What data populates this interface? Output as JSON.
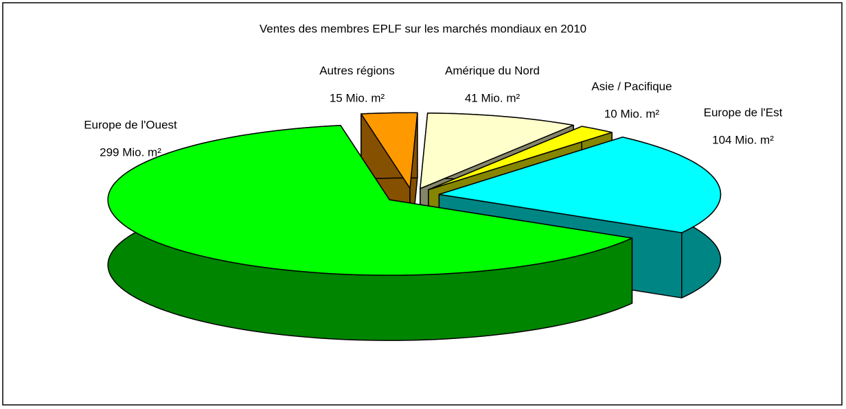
{
  "chart_data": {
    "type": "pie",
    "title": "Ventes des membres EPLF sur les marchés mondiaux en 2010",
    "categories": [
      "Autres régions",
      "Amérique du Nord",
      "Asie / Pacifique",
      "Europe de l'Est",
      "Europe de l'Ouest"
    ],
    "values": [
      15,
      41,
      10,
      104,
      299
    ],
    "value_labels": [
      "15 Mio. m²",
      "41 Mio. m²",
      "10 Mio. m²",
      "104 Mio. m²",
      "299 Mio. m²"
    ],
    "colors": [
      "#ff9900",
      "#ffffcc",
      "#ffff00",
      "#00ffff",
      "#00ff00"
    ]
  }
}
